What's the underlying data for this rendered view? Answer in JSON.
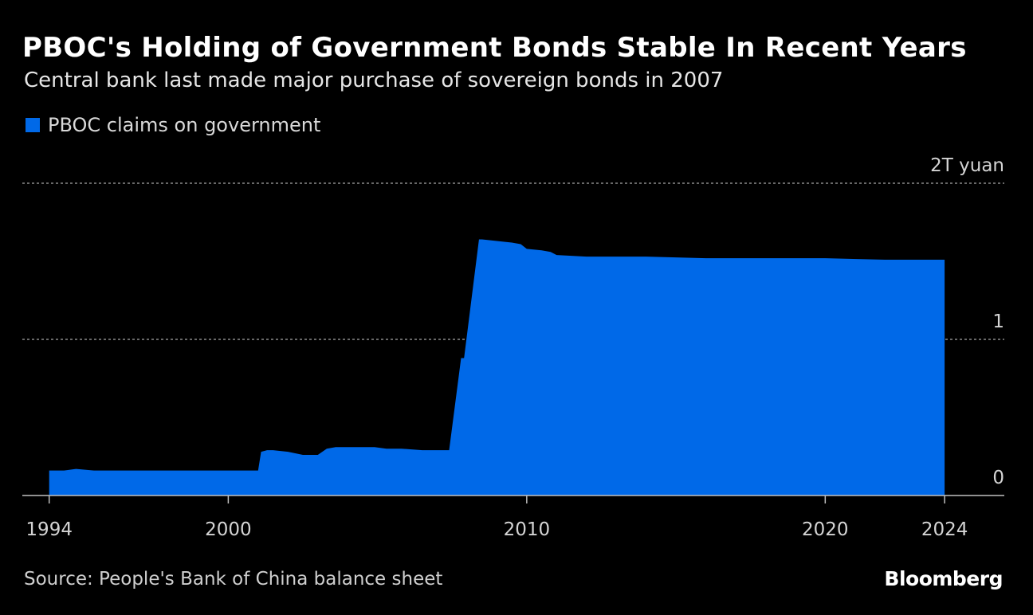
{
  "header": {
    "title": "PBOC's Holding of Government Bonds Stable In Recent Years",
    "subtitle": "Central bank last made major purchase of sovereign bonds in 2007"
  },
  "footer": {
    "source": "Source: People's Bank of China balance sheet",
    "brand": "Bloomberg"
  },
  "chart_data": {
    "type": "area",
    "series": [
      {
        "name": "PBOC claims on government",
        "color": "#0069E8",
        "x": [
          1994.0,
          1994.5,
          1994.9,
          1995.5,
          2000.0,
          2001.0,
          2001.1,
          2001.3,
          2001.5,
          2002.0,
          2002.5,
          2002.8,
          2003.0,
          2003.3,
          2003.6,
          2004.0,
          2004.5,
          2004.9,
          2005.3,
          2005.8,
          2006.5,
          2007.0,
          2007.4,
          2007.8,
          2007.9,
          2008.4,
          2008.5,
          2009.0,
          2009.5,
          2009.8,
          2010.0,
          2010.5,
          2010.8,
          2011.0,
          2012.0,
          2014.0,
          2016.0,
          2017.0,
          2020.0,
          2022.0,
          2024.0
        ],
        "values": [
          0.16,
          0.16,
          0.17,
          0.16,
          0.16,
          0.16,
          0.28,
          0.29,
          0.29,
          0.28,
          0.26,
          0.26,
          0.26,
          0.3,
          0.31,
          0.31,
          0.31,
          0.31,
          0.3,
          0.3,
          0.29,
          0.29,
          0.29,
          0.88,
          0.88,
          1.64,
          1.64,
          1.63,
          1.62,
          1.61,
          1.58,
          1.57,
          1.56,
          1.54,
          1.53,
          1.53,
          1.52,
          1.52,
          1.52,
          1.51,
          1.51
        ]
      }
    ],
    "x_ticks": [
      "1994",
      "2000",
      "2010",
      "2020",
      "2024"
    ],
    "x_tick_values": [
      1994,
      2000,
      2010,
      2020,
      2024
    ],
    "y_ticks": [
      "2T yuan",
      "1",
      "0"
    ],
    "y_tick_values": [
      2,
      1,
      0
    ],
    "xlim": [
      1993.1,
      2026.0
    ],
    "ylim": [
      0,
      2
    ],
    "grid": "horizontal dashed",
    "legend_position": "top-left"
  }
}
